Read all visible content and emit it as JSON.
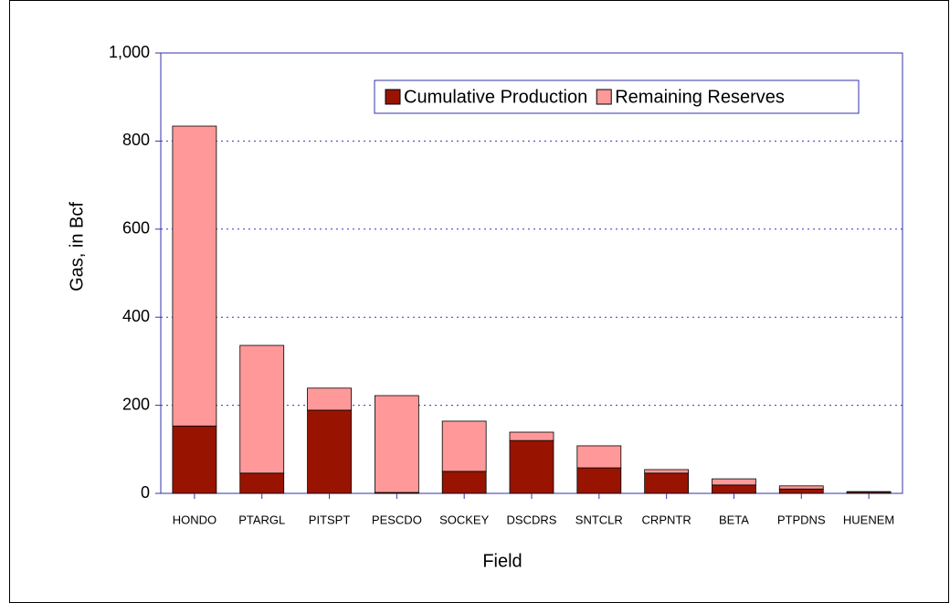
{
  "chart_data": {
    "type": "stacked_bar",
    "x_label": "Field",
    "y_label": "Gas, in Bcf",
    "categories": [
      "HONDO",
      "PTARGL",
      "PITSPT",
      "PESCDO",
      "SOCKEY",
      "DSCDRS",
      "SNTCLR",
      "CRPNTR",
      "BETA",
      "PTPDNS",
      "HUENEM"
    ],
    "series": [
      {
        "name": "Cumulative Production",
        "color": "#991400",
        "values": [
          153,
          46,
          189,
          2,
          50,
          120,
          58,
          46,
          19,
          10,
          3
        ]
      },
      {
        "name": "Remaining Reserves",
        "color": "#ff9999",
        "values": [
          681,
          290,
          50,
          220,
          114,
          19,
          50,
          8,
          14,
          7,
          1
        ]
      }
    ],
    "ylim": [
      0,
      1000
    ],
    "yticks": [
      0,
      200,
      400,
      600,
      800,
      {
        "value": 1000,
        "label": "1,000"
      }
    ],
    "grid": true,
    "legend": "top-right"
  }
}
